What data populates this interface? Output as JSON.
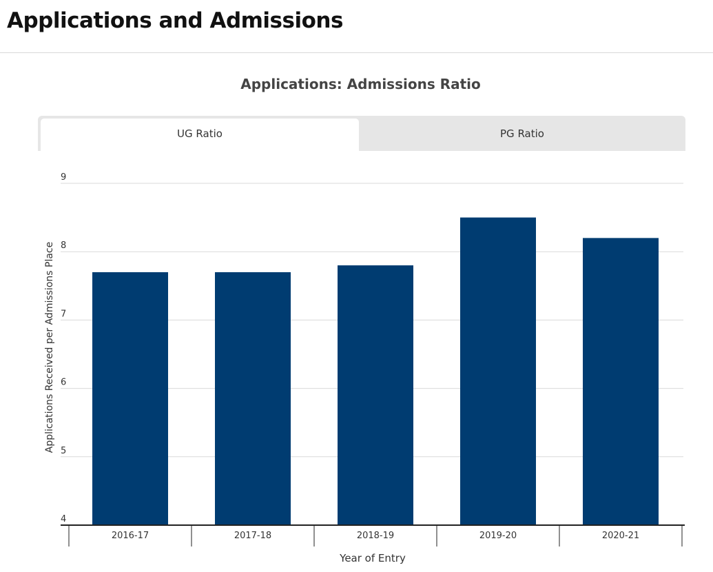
{
  "page": {
    "title": "Applications and Admissions"
  },
  "tabs": [
    {
      "label": "UG Ratio",
      "active": true
    },
    {
      "label": "PG Ratio",
      "active": false
    }
  ],
  "colors": {
    "bar": "#003c71",
    "grid": "#d9d9d9",
    "axis": "#222222"
  },
  "chart_data": {
    "type": "bar",
    "title": "Applications: Admissions Ratio",
    "xlabel": "Year of Entry",
    "ylabel": "Applications Received per Admissions Place",
    "categories": [
      "2016-17",
      "2017-18",
      "2018-19",
      "2019-20",
      "2020-21"
    ],
    "values": [
      7.7,
      7.7,
      7.8,
      8.5,
      8.2
    ],
    "ylim": [
      4,
      9
    ],
    "yticks": [
      4,
      5,
      6,
      7,
      8,
      9
    ],
    "grid": true,
    "legend": "none"
  }
}
